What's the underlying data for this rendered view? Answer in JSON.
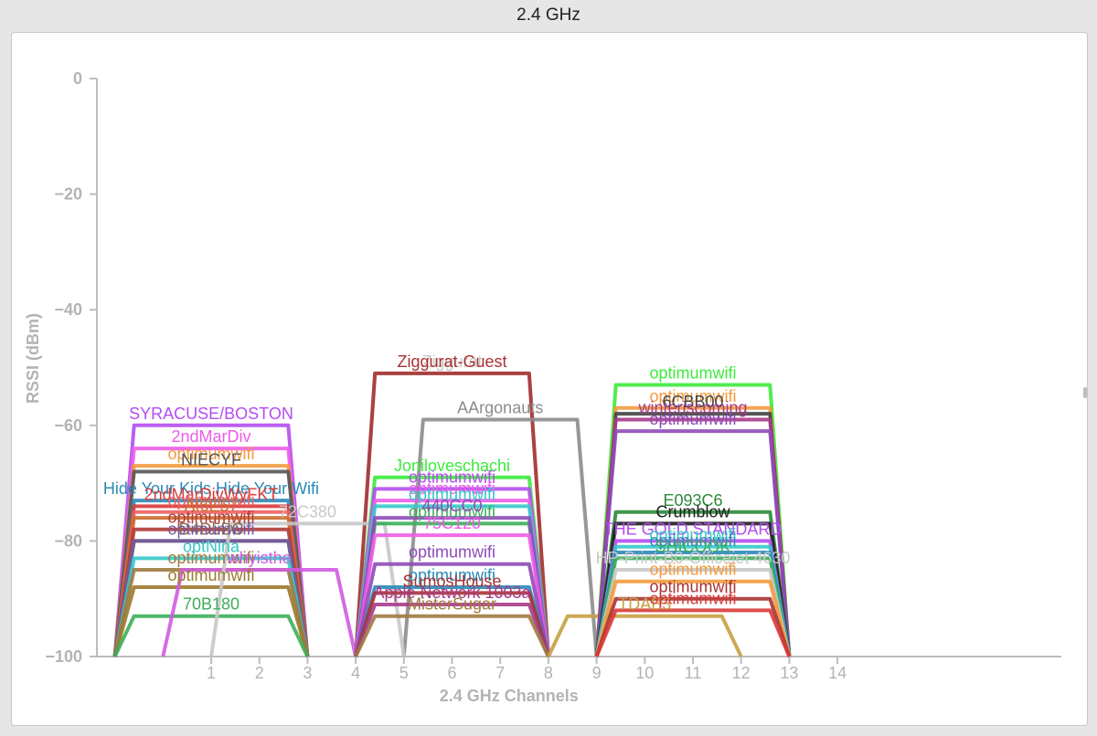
{
  "window": {
    "title": "2.4 GHz"
  },
  "chart_data": {
    "type": "line",
    "title": "",
    "xlabel": "2.4 GHz Channels",
    "ylabel": "RSSI (dBm)",
    "xlim": [
      -1.2,
      19
    ],
    "ylim": [
      -100,
      0
    ],
    "yticks": [
      0,
      -20,
      -40,
      -60,
      -80,
      -100
    ],
    "xticks": [
      1,
      2,
      3,
      4,
      5,
      6,
      7,
      8,
      9,
      10,
      11,
      12,
      13,
      14
    ],
    "networks": [
      {
        "name": "SYRACUSE/BOSTON",
        "channel": 1,
        "rssi": -60,
        "color": "#b44cf0"
      },
      {
        "name": "2ndMarDiv",
        "channel": 1,
        "rssi": -64,
        "color": "#ee5ce8"
      },
      {
        "name": "optimumwifi",
        "channel": 1,
        "rssi": -67,
        "color": "#f39a3c"
      },
      {
        "name": "NIECYF",
        "channel": 1,
        "rssi": -68,
        "color": "#555555"
      },
      {
        "name": "Hide Your Kids Hide Your Wifi",
        "channel": 1,
        "rssi": -73,
        "color": "#2a8ab8"
      },
      {
        "name": "2ndMarDivWyFKT",
        "channel": 1,
        "rssi": -74,
        "color": "#d93a3a"
      },
      {
        "name": "optimumwifi",
        "channel": 1,
        "rssi": -75,
        "color": "#f06060"
      },
      {
        "name": "AI6E57",
        "channel": 1,
        "rssi": -76,
        "color": "#cc6d2f"
      },
      {
        "name": "optimumwifi",
        "channel": 1,
        "rssi": -78,
        "color": "#b23a3a"
      },
      {
        "name": "D4D5BC",
        "channel": 1,
        "rssi": -80,
        "color": "#8b6e4a"
      },
      {
        "name": "optimumwifi",
        "channel": 1,
        "rssi": -80,
        "color": "#6e5aa0"
      },
      {
        "name": "optNina",
        "channel": 1,
        "rssi": -83,
        "color": "#35c9c9"
      },
      {
        "name": "optimumwifi",
        "channel": 1,
        "rssi": -85,
        "color": "#a07a40"
      },
      {
        "name": "optimumwifi",
        "channel": 1,
        "rssi": -88,
        "color": "#9c7a2e"
      },
      {
        "name": "70B180",
        "channel": 1,
        "rssi": -93,
        "color": "#3cae5a"
      },
      {
        "name": "whyisthe",
        "channel": 2,
        "rssi": -85,
        "color": "#cf5ce0"
      },
      {
        "name": "Ziggurat",
        "channel": 6,
        "rssi": -51,
        "color": "#c8c8c8"
      },
      {
        "name": "Ziggurat-Guest",
        "channel": 6,
        "rssi": -51,
        "color": "#a83232"
      },
      {
        "name": "AArgonauts",
        "channel": 7,
        "rssi": -59,
        "color": "#8c8c8c"
      },
      {
        "name": "72C380",
        "channel": 3,
        "rssi": -77,
        "color": "#c8c8c8"
      },
      {
        "name": "Joniloveschachi",
        "channel": 6,
        "rssi": -69,
        "color": "#3ceb3c"
      },
      {
        "name": "optimumwifi",
        "channel": 6,
        "rssi": -71,
        "color": "#b44cf0"
      },
      {
        "name": "optimumwifi",
        "channel": 6,
        "rssi": -73,
        "color": "#ee5ce8"
      },
      {
        "name": "optimumwifi",
        "channel": 6,
        "rssi": -74,
        "color": "#35c9c9"
      },
      {
        "name": "optimumwifi",
        "channel": 6,
        "rssi": -77,
        "color": "#3cae5a"
      },
      {
        "name": "440CC0",
        "channel": 6,
        "rssi": -76,
        "color": "#8e4ab8"
      },
      {
        "name": "75C120",
        "channel": 6,
        "rssi": -79,
        "color": "#ee5ce8"
      },
      {
        "name": "optimumwifi",
        "channel": 6,
        "rssi": -84,
        "color": "#8e4ab8"
      },
      {
        "name": "optimumwifi",
        "channel": 6,
        "rssi": -88,
        "color": "#2a8ab8"
      },
      {
        "name": "SumosHouse",
        "channel": 6,
        "rssi": -89,
        "color": "#a83232"
      },
      {
        "name": "Apple Network 1003a",
        "channel": 6,
        "rssi": -91,
        "color": "#a83a8a"
      },
      {
        "name": "MisterSugar",
        "channel": 6,
        "rssi": -93,
        "color": "#a07a40"
      },
      {
        "name": "TDAB3",
        "channel": 10,
        "rssi": -93,
        "color": "#c8a040"
      },
      {
        "name": "optimumwifi",
        "channel": 11,
        "rssi": -53,
        "color": "#3ceb3c"
      },
      {
        "name": "optimumwifi",
        "channel": 11,
        "rssi": -57,
        "color": "#f39a3c"
      },
      {
        "name": "6CBB00",
        "channel": 11,
        "rssi": -58,
        "color": "#444444"
      },
      {
        "name": "winteriscoming",
        "channel": 11,
        "rssi": -59,
        "color": "#a83a8a"
      },
      {
        "name": "optimumwifi",
        "channel": 11,
        "rssi": -61,
        "color": "#8e4ab8"
      },
      {
        "name": "E093C6",
        "channel": 11,
        "rssi": -75,
        "color": "#2a8a3a"
      },
      {
        "name": "Crumblow",
        "channel": 11,
        "rssi": -77,
        "color": "#1e1e1e"
      },
      {
        "name": "THE GOLD STANDARD",
        "channel": 11,
        "rssi": -80,
        "color": "#b44cf0"
      },
      {
        "name": "optimumwifi",
        "channel": 11,
        "rssi": -81,
        "color": "#35c9c9"
      },
      {
        "name": "optimumwifi",
        "channel": 11,
        "rssi": -82,
        "color": "#2a8ab8"
      },
      {
        "name": "SHICOOK",
        "channel": 11,
        "rssi": -83,
        "color": "#3cae5a"
      },
      {
        "name": "HP-Print-B0-Officejet 4630",
        "channel": 11,
        "rssi": -85,
        "color": "#c8c8c8"
      },
      {
        "name": "optimumwifi",
        "channel": 11,
        "rssi": -87,
        "color": "#f39a3c"
      },
      {
        "name": "optimumwifi",
        "channel": 11,
        "rssi": -90,
        "color": "#a83232"
      },
      {
        "name": "optimumwifi",
        "channel": 11,
        "rssi": -92,
        "color": "#d93a3a"
      }
    ]
  }
}
